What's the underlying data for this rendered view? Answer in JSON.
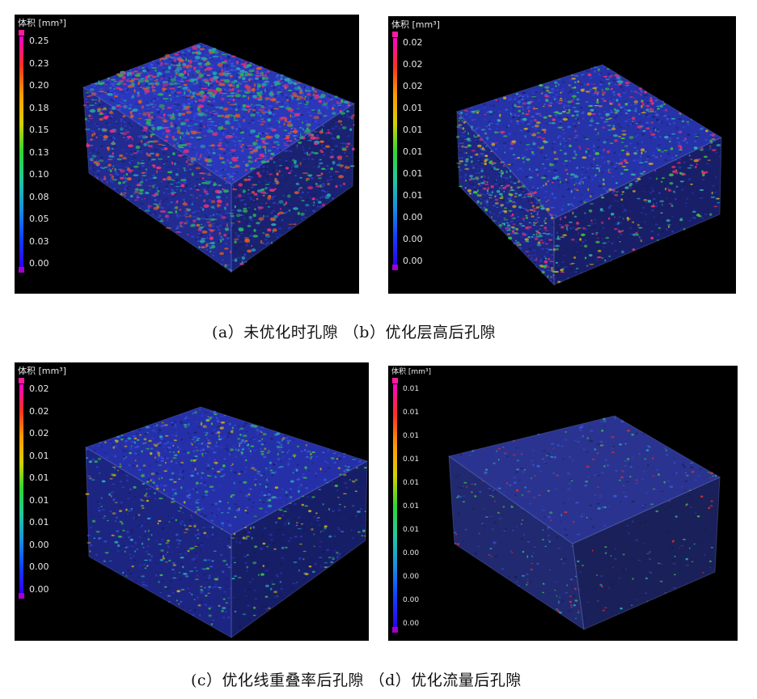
{
  "panels": [
    {
      "id": "a",
      "legend_title": "体积 [mm³]",
      "ticks": [
        "0.25",
        "0.23",
        "0.20",
        "0.18",
        "0.15",
        "0.13",
        "0.10",
        "0.08",
        "0.05",
        "0.03",
        "0.00"
      ],
      "box_color": "#2a37b8",
      "pore_colors": [
        "#e0307a",
        "#d85a2a",
        "#2fb05a",
        "#28a0b0"
      ],
      "pore_density": "high"
    },
    {
      "id": "b",
      "legend_title": "体积 [mm³]",
      "ticks": [
        "0.02",
        "0.02",
        "0.02",
        "0.01",
        "0.01",
        "0.01",
        "0.01",
        "0.01",
        "0.00",
        "0.00",
        "0.00"
      ],
      "box_color": "#2632a8",
      "pore_colors": [
        "#3cc040",
        "#c8a020",
        "#e03070",
        "#30a8b0"
      ],
      "pore_density": "medium"
    },
    {
      "id": "c",
      "legend_title": "体积 [mm³]",
      "ticks": [
        "0.02",
        "0.02",
        "0.02",
        "0.01",
        "0.01",
        "0.01",
        "0.01",
        "0.00",
        "0.00",
        "0.00"
      ],
      "box_color": "#2530a8",
      "pore_colors": [
        "#38b848",
        "#2aa0b8",
        "#c0a020"
      ],
      "pore_density": "low"
    },
    {
      "id": "d",
      "legend_title": "体积 [mm³]",
      "ticks": [
        "0.01",
        "0.01",
        "0.01",
        "0.01",
        "0.01",
        "0.01",
        "0.01",
        "0.00",
        "0.00",
        "0.00",
        "0.00"
      ],
      "box_color": "#2a3490",
      "pore_colors": [
        "#2aa0b8",
        "#d03030",
        "#38b050"
      ],
      "pore_density": "very-low"
    }
  ],
  "captions": {
    "top": "(a）未优化时孔隙 （b）优化层高后孔隙",
    "bottom": "(c）优化线重叠率后孔隙 （d）优化流量后孔隙"
  },
  "colorbar": {
    "stops": [
      "#ff00cc",
      "#ff3020",
      "#ff9a00",
      "#d8d000",
      "#30d830",
      "#20c8a0",
      "#1890e0",
      "#1040ff",
      "#3000f0"
    ],
    "top_cap": "#ff1aa0",
    "bottom_cap": "#a000d0"
  }
}
